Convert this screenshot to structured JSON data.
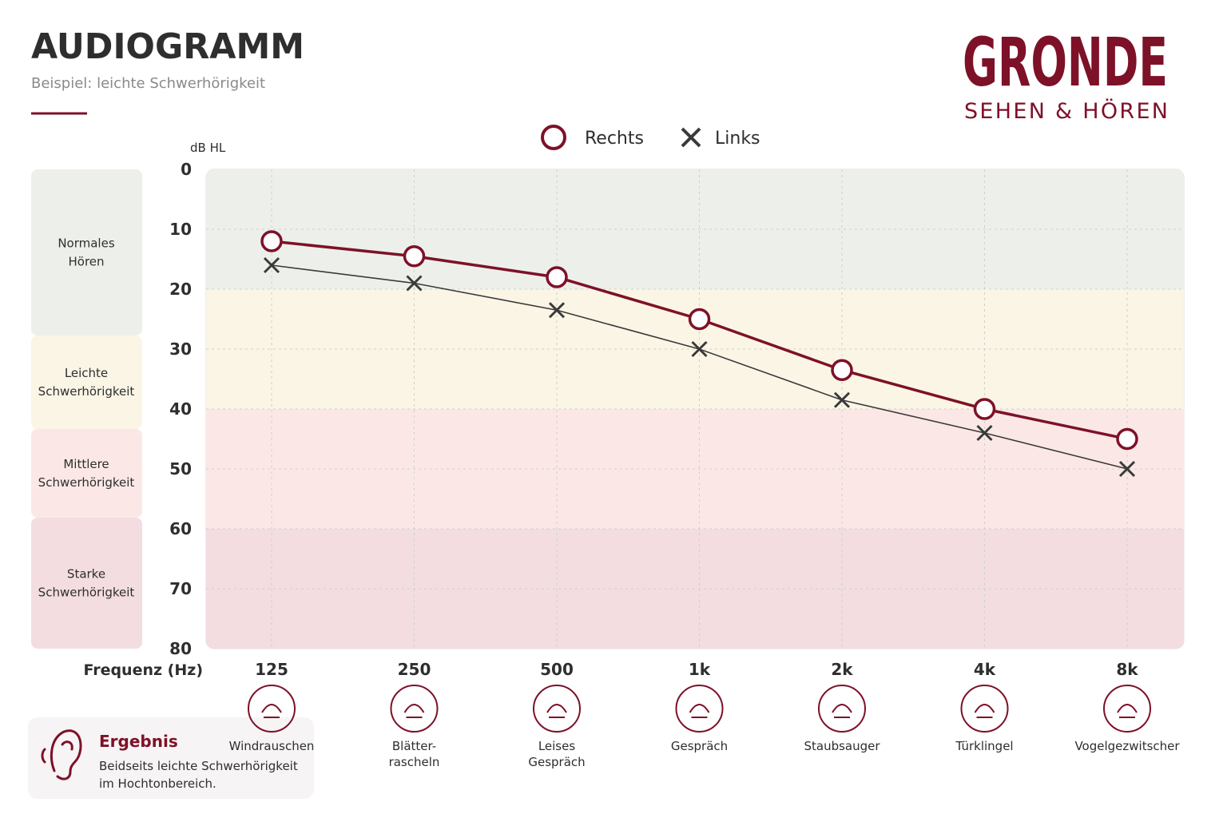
{
  "header": {
    "title": "AUDIOGRAMM",
    "subtitle": "Beispiel: leichte Schwerhörigkeit",
    "brand": "GRONDE",
    "brand_tagline": "SEHEN & HÖREN"
  },
  "chart_data": {
    "type": "line",
    "y_label": "dB HL",
    "x_label": "Frequenz (Hz)",
    "categories": [
      "125",
      "250",
      "500",
      "1k",
      "2k",
      "4k",
      "8k"
    ],
    "series": [
      {
        "name": "Rechts",
        "color": "#7d1128",
        "marker": "circle",
        "values": [
          12,
          14.5,
          18,
          25,
          33.5,
          40,
          45
        ]
      },
      {
        "name": "Links",
        "color": "#3a3a3a",
        "marker": "x",
        "values": [
          16,
          19,
          23.5,
          30,
          38.5,
          44,
          50
        ]
      }
    ],
    "ylim": [
      0,
      80
    ],
    "yticks": [
      0,
      10,
      20,
      30,
      40,
      50,
      60,
      70,
      80
    ],
    "y_inverted": true,
    "grid": true,
    "bands": [
      {
        "label": [
          "Normales",
          "Hören"
        ],
        "from": 0,
        "to": 20,
        "color": "#edf0ea"
      },
      {
        "label": [
          "Leichte",
          "Schwerhörigkeit"
        ],
        "from": 20,
        "to": 40,
        "color": "#fbf5e6"
      },
      {
        "label": [
          "Mittlere",
          "Schwerhörigkeit"
        ],
        "from": 40,
        "to": 60,
        "color": "#fbe8e6"
      },
      {
        "label": [
          "Starke",
          "Schwerhörigkeit"
        ],
        "from": 60,
        "to": 80,
        "color": "#f3dde0"
      }
    ],
    "sounds": [
      [
        "Windrauschen"
      ],
      [
        "Blätter-",
        "rascheln"
      ],
      [
        "Leises",
        "Gespräch"
      ],
      [
        "Gespräch"
      ],
      [
        "Staubsauger"
      ],
      [
        "Türklingel"
      ],
      [
        "Vogelgezwitscher"
      ]
    ]
  },
  "result": {
    "title": "Ergebnis",
    "lines": [
      "Beidseits leichte Schwerhörigkeit",
      "im Hochtonbereich."
    ]
  }
}
